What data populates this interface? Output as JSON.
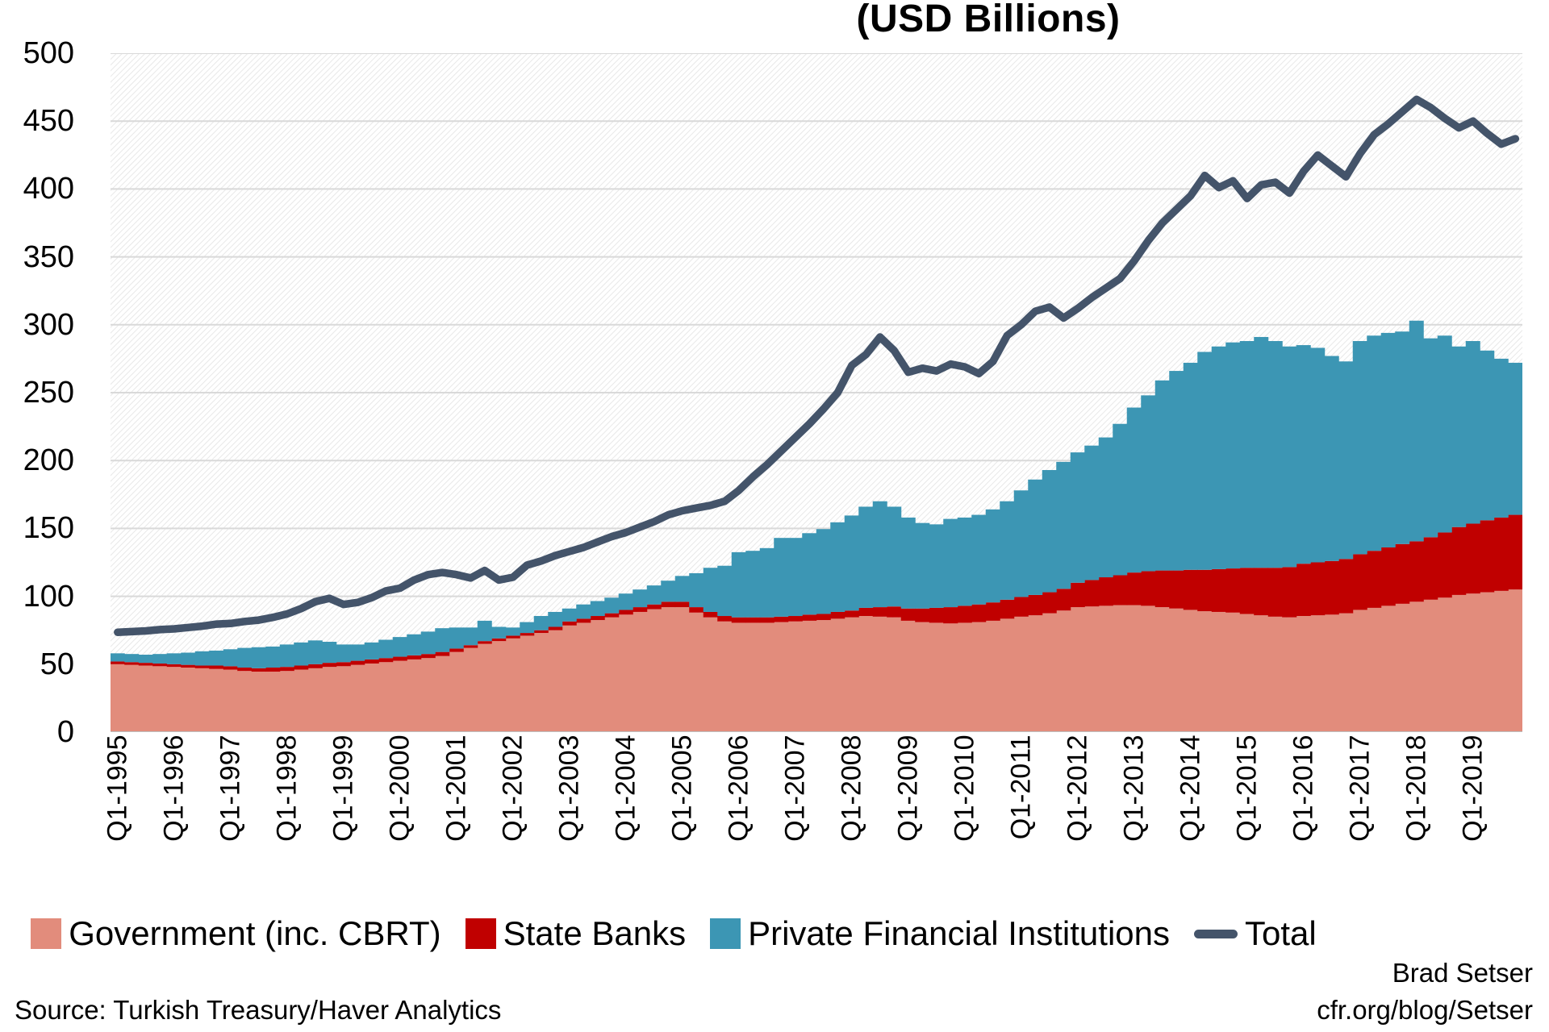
{
  "title": "(USD Billions)",
  "legend": {
    "items": [
      {
        "label": "Government (inc. CBRT)",
        "color": "#E28C7C",
        "swatch": "square"
      },
      {
        "label": "State Banks",
        "color": "#C00000",
        "swatch": "square"
      },
      {
        "label": "Private Financial Institutions",
        "color": "#3C96B4",
        "swatch": "square"
      },
      {
        "label": "Total",
        "color": "#44546A",
        "swatch": "line"
      }
    ]
  },
  "footer": {
    "source": "Source: Turkish Treasury/Haver Analytics",
    "credit_name": "Brad Setser",
    "credit_url": "cfr.org/blog/Setser"
  },
  "colors": {
    "government": "#E28C7C",
    "state_banks": "#C00000",
    "private_financial": "#3C96B4",
    "total_line": "#44546A",
    "gridline": "#D9D9D9",
    "baseline": "#BFBFBF",
    "hatch": "#E4E4E4",
    "text": "#000000"
  },
  "chart_data": {
    "type": "bar",
    "subtype": "stacked-columns-with-line",
    "title": "(USD Billions)",
    "xlabel": "",
    "ylabel": "",
    "ylim": [
      0,
      500
    ],
    "ytick_step": 50,
    "grid": "horizontal",
    "legend_position": "bottom",
    "x_tick_labels": [
      "Q1-1995",
      "Q1-1996",
      "Q1-1997",
      "Q1-1998",
      "Q1-1999",
      "Q1-2000",
      "Q1-2001",
      "Q1-2002",
      "Q1-2003",
      "Q1-2004",
      "Q1-2005",
      "Q1-2006",
      "Q1-2007",
      "Q1-2008",
      "Q1-2009",
      "Q1-2010",
      "Q1-2011",
      "Q1-2012",
      "Q1-2013",
      "Q1-2014",
      "Q1-2015",
      "Q1-2016",
      "Q1-2017",
      "Q1-2018",
      "Q1-2019"
    ],
    "categories": [
      "Q1-1995",
      "Q2-1995",
      "Q3-1995",
      "Q4-1995",
      "Q1-1996",
      "Q2-1996",
      "Q3-1996",
      "Q4-1996",
      "Q1-1997",
      "Q2-1997",
      "Q3-1997",
      "Q4-1997",
      "Q1-1998",
      "Q2-1998",
      "Q3-1998",
      "Q4-1998",
      "Q1-1999",
      "Q2-1999",
      "Q3-1999",
      "Q4-1999",
      "Q1-2000",
      "Q2-2000",
      "Q3-2000",
      "Q4-2000",
      "Q1-2001",
      "Q2-2001",
      "Q3-2001",
      "Q4-2001",
      "Q1-2002",
      "Q2-2002",
      "Q3-2002",
      "Q4-2002",
      "Q1-2003",
      "Q2-2003",
      "Q3-2003",
      "Q4-2003",
      "Q1-2004",
      "Q2-2004",
      "Q3-2004",
      "Q4-2004",
      "Q1-2005",
      "Q2-2005",
      "Q3-2005",
      "Q4-2005",
      "Q1-2006",
      "Q2-2006",
      "Q3-2006",
      "Q4-2006",
      "Q1-2007",
      "Q2-2007",
      "Q3-2007",
      "Q4-2007",
      "Q1-2008",
      "Q2-2008",
      "Q3-2008",
      "Q4-2008",
      "Q1-2009",
      "Q2-2009",
      "Q3-2009",
      "Q4-2009",
      "Q1-2010",
      "Q2-2010",
      "Q3-2010",
      "Q4-2010",
      "Q1-2011",
      "Q2-2011",
      "Q3-2011",
      "Q4-2011",
      "Q1-2012",
      "Q2-2012",
      "Q3-2012",
      "Q4-2012",
      "Q1-2013",
      "Q2-2013",
      "Q3-2013",
      "Q4-2013",
      "Q1-2014",
      "Q2-2014",
      "Q3-2014",
      "Q4-2014",
      "Q1-2015",
      "Q2-2015",
      "Q3-2015",
      "Q4-2015",
      "Q1-2016",
      "Q2-2016",
      "Q3-2016",
      "Q4-2016",
      "Q1-2017",
      "Q2-2017",
      "Q3-2017",
      "Q4-2017",
      "Q1-2018",
      "Q2-2018",
      "Q3-2018",
      "Q4-2018",
      "Q1-2019",
      "Q2-2019",
      "Q3-2019",
      "Q4-2019"
    ],
    "series": [
      {
        "name": "Government (inc. CBRT)",
        "type": "bar",
        "color": "#E28C7C",
        "values": [
          50,
          49.5,
          49,
          48.5,
          48,
          47.5,
          47,
          46.5,
          46,
          45,
          44.5,
          44.5,
          45,
          46,
          47,
          48,
          48.5,
          49.5,
          50.5,
          51.5,
          52.5,
          53.5,
          54.5,
          56,
          59,
          62,
          65,
          67,
          69,
          71,
          73,
          75,
          78.5,
          80.5,
          82.5,
          84.5,
          86.5,
          88.5,
          90.5,
          92,
          92,
          88,
          84.5,
          81.5,
          80.5,
          80.5,
          80.5,
          81,
          81.5,
          82,
          82.5,
          83.5,
          84.5,
          85.5,
          85,
          84.5,
          82,
          81,
          80.5,
          80,
          80.5,
          81,
          82,
          83.5,
          85,
          86,
          87.5,
          89.5,
          92,
          92.5,
          93,
          93.5,
          93.5,
          93,
          92,
          91,
          90,
          89,
          88.5,
          88,
          87,
          86,
          85,
          84.5,
          85.5,
          86,
          86.5,
          87.5,
          90,
          91.5,
          93,
          94.5,
          96,
          97.5,
          99,
          101,
          102,
          103,
          104,
          105
        ]
      },
      {
        "name": "State Banks",
        "type": "bar",
        "color": "#C00000",
        "values": [
          2,
          2,
          2,
          2,
          2,
          2,
          2,
          2.5,
          2.5,
          2.5,
          2.5,
          3,
          3,
          3,
          3,
          3,
          3,
          3,
          3,
          3,
          3,
          3,
          3,
          3,
          2.5,
          2,
          2,
          2,
          2,
          2,
          2,
          2.5,
          3,
          3,
          3,
          3,
          3.5,
          3.5,
          3.5,
          4,
          4,
          4,
          4,
          4,
          4,
          4,
          4,
          4,
          4,
          4.5,
          4.5,
          5,
          5,
          6,
          7,
          8,
          9,
          10,
          11,
          12,
          12.5,
          13,
          13.5,
          14,
          14.5,
          15,
          15.5,
          16,
          18,
          19.5,
          21,
          22,
          24,
          25.5,
          27,
          28,
          29.5,
          30.5,
          31.5,
          32.5,
          34,
          35,
          36,
          37,
          38.5,
          39,
          39.5,
          40,
          41,
          42,
          43,
          44,
          44.5,
          46,
          48,
          50,
          51.5,
          53,
          54,
          55
        ]
      },
      {
        "name": "Private Financial Institutions",
        "type": "bar",
        "color": "#3C96B4",
        "values": [
          6,
          6,
          6,
          7,
          8,
          9,
          10.5,
          11,
          12.5,
          14.5,
          15.5,
          15.5,
          16.5,
          17,
          17.5,
          15.5,
          13,
          12,
          12.5,
          13.5,
          14.5,
          15.5,
          16.5,
          17.5,
          15.5,
          13,
          15,
          8.5,
          6,
          8,
          10.5,
          11,
          9.5,
          10.5,
          11,
          11.5,
          12,
          13,
          14,
          15.5,
          19,
          25,
          32.5,
          37,
          48,
          49,
          51,
          58,
          57.5,
          60,
          62.5,
          66,
          70,
          74.5,
          78,
          73.5,
          67,
          63,
          61.5,
          65,
          65,
          66,
          68.5,
          72.5,
          78.5,
          85,
          90,
          93.5,
          96,
          99,
          103,
          111.5,
          121.5,
          129.5,
          140,
          147,
          152.5,
          160.5,
          164,
          166.5,
          167,
          170,
          167,
          162.5,
          161,
          158,
          151,
          145.5,
          157,
          158.5,
          158,
          156.5,
          162.5,
          146.5,
          145,
          133,
          134.5,
          125,
          117,
          112
        ]
      },
      {
        "name": "Total",
        "type": "line",
        "color": "#44546A",
        "stroke_width": 9.5,
        "values": [
          73.5,
          74,
          74.5,
          75.5,
          76,
          77,
          78,
          79.5,
          80,
          81.5,
          82.5,
          84.5,
          87,
          91,
          96,
          98.5,
          94,
          95.5,
          99,
          104,
          106,
          112,
          116,
          117.5,
          116,
          113.5,
          119,
          112,
          114,
          123,
          126,
          130,
          133,
          136,
          140,
          144,
          147,
          151,
          155,
          160,
          163,
          165,
          167,
          170,
          178,
          188,
          197,
          207,
          217,
          227,
          238,
          250,
          270,
          278,
          291,
          281,
          265,
          268,
          266,
          271,
          269,
          264,
          273,
          292,
          300,
          310,
          313,
          305,
          312,
          320,
          327,
          334,
          347,
          362,
          375,
          385,
          395,
          410,
          401,
          406,
          393,
          403,
          405,
          397,
          413,
          425,
          417,
          409,
          426,
          440,
          448,
          457,
          466,
          460,
          452,
          445,
          450,
          441,
          433,
          437
        ]
      }
    ]
  }
}
